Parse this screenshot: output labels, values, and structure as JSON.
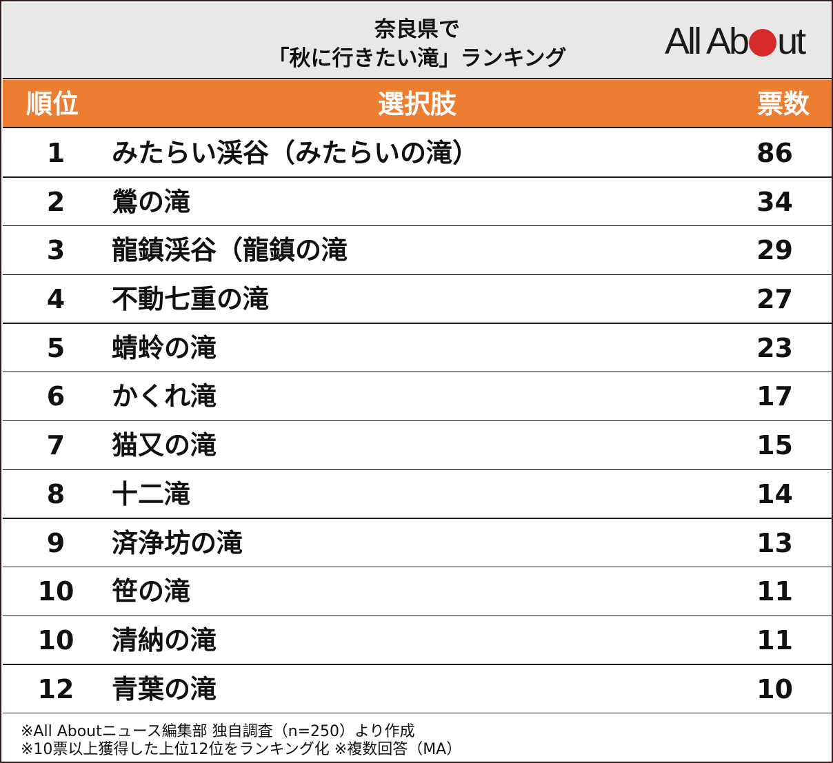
{
  "header": {
    "title_line1": "奈良県で",
    "title_line2": "「秋に行きたい滝」ランキング",
    "logo": {
      "text_left": "All Ab",
      "text_right": "ut",
      "dot_color": "#d62a2a"
    }
  },
  "columns": {
    "rank": "順位",
    "choice": "選択肢",
    "votes": "票数"
  },
  "colors": {
    "header_bg": "#e8e8e8",
    "column_header_bg": "#ed7d31",
    "logo_dot": "#d62a2a"
  },
  "rows": [
    {
      "rank": "1",
      "name": "みたらい渓谷（みたらいの滝）",
      "votes": "86"
    },
    {
      "rank": "2",
      "name": "鶯の滝",
      "votes": "34"
    },
    {
      "rank": "3",
      "name": "龍鎮渓谷（龍鎮の滝",
      "votes": "29"
    },
    {
      "rank": "4",
      "name": "不動七重の滝",
      "votes": "27"
    },
    {
      "rank": "5",
      "name": "蜻蛉の滝",
      "votes": "23"
    },
    {
      "rank": "6",
      "name": "かくれ滝",
      "votes": "17"
    },
    {
      "rank": "7",
      "name": "猫又の滝",
      "votes": "15"
    },
    {
      "rank": "8",
      "name": "十二滝",
      "votes": "14"
    },
    {
      "rank": "9",
      "name": "済浄坊の滝",
      "votes": "13"
    },
    {
      "rank": "10",
      "name": "笹の滝",
      "votes": "11"
    },
    {
      "rank": "10",
      "name": "清納の滝",
      "votes": "11"
    },
    {
      "rank": "12",
      "name": "青葉の滝",
      "votes": "10"
    }
  ],
  "footer": {
    "note1": "※All Aboutニュース編集部 独自調査（n=250）より作成",
    "note2": "※10票以上獲得した上位12位をランキング化 ※複数回答（MA）"
  },
  "chart_data": {
    "type": "table",
    "title": "奈良県で「秋に行きたい滝」ランキング",
    "columns": [
      "順位",
      "選択肢",
      "票数"
    ],
    "categories": [
      "みたらい渓谷（みたらいの滝）",
      "鶯の滝",
      "龍鎮渓谷（龍鎮の滝",
      "不動七重の滝",
      "蜻蛉の滝",
      "かくれ滝",
      "猫又の滝",
      "十二滝",
      "済浄坊の滝",
      "笹の滝",
      "清納の滝",
      "青葉の滝"
    ],
    "ranks": [
      1,
      2,
      3,
      4,
      5,
      6,
      7,
      8,
      9,
      10,
      10,
      12
    ],
    "values": [
      86,
      34,
      29,
      27,
      23,
      17,
      15,
      14,
      13,
      11,
      11,
      10
    ],
    "notes": [
      "※All Aboutニュース編集部 独自調査（n=250）より作成",
      "※10票以上獲得した上位12位をランキング化 ※複数回答（MA）"
    ]
  }
}
